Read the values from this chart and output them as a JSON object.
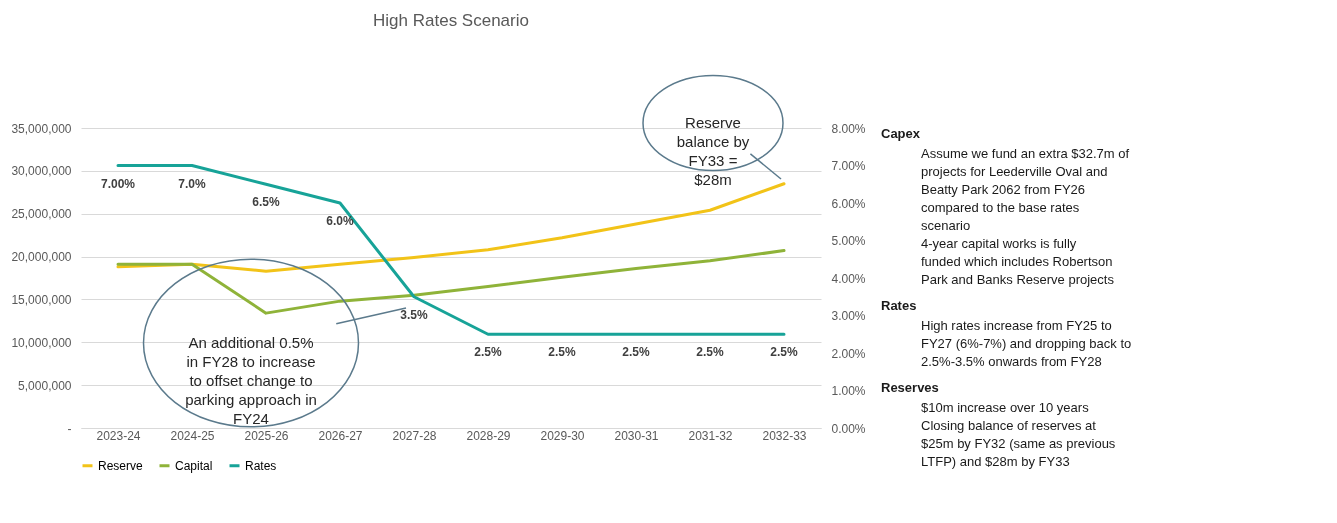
{
  "chart_data": [
    {
      "type": "line",
      "title": "High Rates Scenario",
      "categories": [
        "2023-24",
        "2024-25",
        "2025-26",
        "2026-27",
        "2027-28",
        "2028-29",
        "2029-30",
        "2030-31",
        "2031-32",
        "2032-33"
      ],
      "series": [
        {
          "name": "Reserve",
          "color": "#f2c318",
          "values": [
            18800000,
            19100000,
            18300000,
            19100000,
            19900000,
            20800000,
            22200000,
            23800000,
            25400000,
            28500000
          ]
        },
        {
          "name": "Capital",
          "color": "#8fb339",
          "values": [
            19100000,
            19100000,
            13400000,
            14800000,
            15500000,
            16500000,
            17600000,
            18600000,
            19500000,
            20700000
          ]
        },
        {
          "name": "Rates",
          "color": "#17a398",
          "axis": "y2",
          "values": [
            7.0,
            7.0,
            6.5,
            6.0,
            3.5,
            2.5,
            2.5,
            2.5,
            2.5,
            2.5
          ],
          "value_labels": [
            "7.00%",
            "7.0%",
            "6.5%",
            "6.0%",
            "3.5%",
            "2.5%",
            "2.5%",
            "2.5%",
            "2.5%",
            "2.5%"
          ]
        }
      ],
      "ylim": [
        0,
        35000000
      ],
      "yticks": [
        {
          "value": 0,
          "label": "-"
        },
        {
          "value": 5000000,
          "label": "5,000,000"
        },
        {
          "value": 10000000,
          "label": "10,000,000"
        },
        {
          "value": 15000000,
          "label": "15,000,000"
        },
        {
          "value": 20000000,
          "label": "20,000,000"
        },
        {
          "value": 25000000,
          "label": "25,000,000"
        },
        {
          "value": 30000000,
          "label": "30,000,000"
        },
        {
          "value": 35000000,
          "label": "35,000,000"
        }
      ],
      "y2lim": [
        0,
        8
      ],
      "y2ticks": [
        {
          "value": 0,
          "label": "0.00%"
        },
        {
          "value": 1,
          "label": "1.00%"
        },
        {
          "value": 2,
          "label": "2.00%"
        },
        {
          "value": 3,
          "label": "3.00%"
        },
        {
          "value": 4,
          "label": "4.00%"
        },
        {
          "value": 5,
          "label": "5.00%"
        },
        {
          "value": 6,
          "label": "6.00%"
        },
        {
          "value": 7,
          "label": "7.00%"
        },
        {
          "value": 8,
          "label": "8.00%"
        }
      ],
      "grid": "y",
      "legend": "bottom",
      "annotations": [
        "An additional 0.5% in FY28 to increase to offset change to parking approach in FY24",
        "Reserve balance by FY33 = $28m"
      ]
    },
    {
      "type": "other",
      "title": "Capex",
      "annotations": [
        "Assume we fund an extra $32.7m of projects for Leederville Oval and Beatty Park 2062 from FY26 compared to the base rates scenario",
        "4-year capital works is fully funded which includes Robertson Park and Banks Reserve projects"
      ]
    },
    {
      "type": "other",
      "title": "Rates",
      "annotations": [
        "High rates increase from FY25 to FY27 (6%-7%) and dropping back to 2.5%-3.5% onwards from FY28"
      ]
    },
    {
      "type": "other",
      "title": "Reserves",
      "annotations": [
        "$10m increase over 10 years",
        "Closing balance of reserves at $25m by FY32 (same as previous LTFP) and $28m by FY33"
      ]
    }
  ]
}
